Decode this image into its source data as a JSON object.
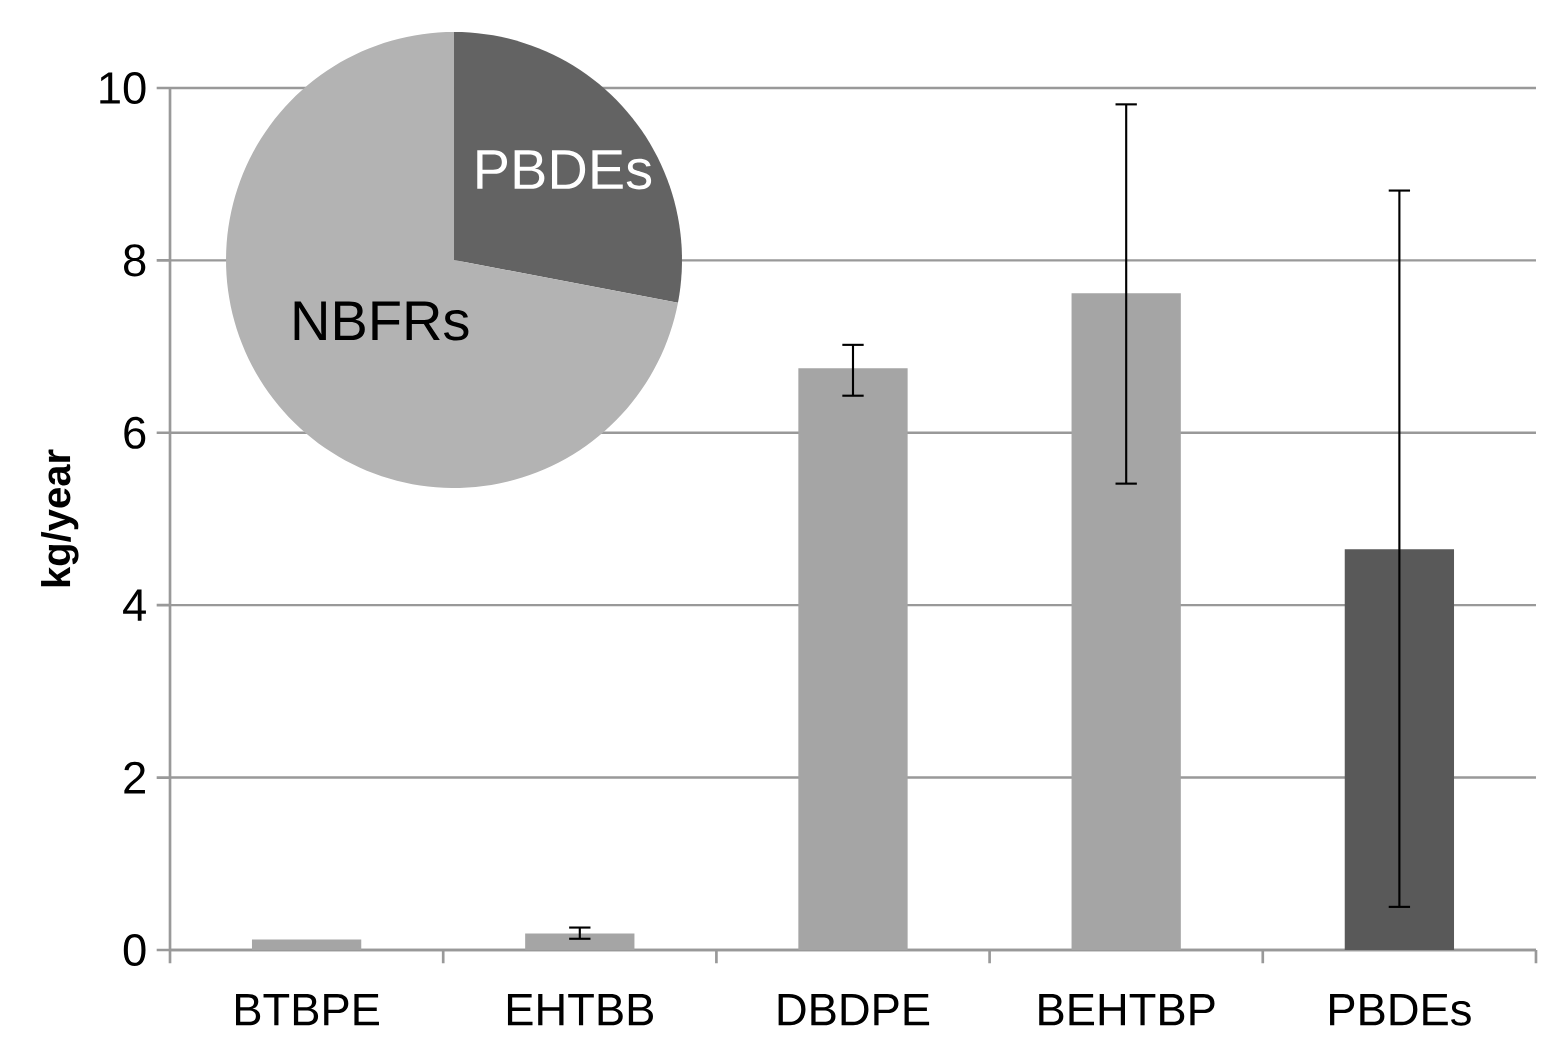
{
  "chart_data": [
    {
      "type": "bar",
      "ylabel": "kg/year",
      "categories": [
        "BTBPE",
        "EHTBB",
        "DBDPE",
        "BEHTBP",
        "PBDEs"
      ],
      "values": [
        0.12,
        0.19,
        6.75,
        7.62,
        4.65
      ],
      "colors": [
        "#a5a5a5",
        "#a5a5a5",
        "#a5a5a5",
        "#a5a5a5",
        "#595959"
      ],
      "errors": [
        null,
        [
          0.13,
          0.26
        ],
        [
          6.43,
          7.02
        ],
        [
          5.41,
          9.81
        ],
        [
          0.5,
          8.81
        ]
      ],
      "ylim": [
        0,
        10
      ],
      "yticks": [
        0,
        2,
        4,
        6,
        8,
        10
      ],
      "grid": "y"
    },
    {
      "type": "pie",
      "categories": [
        "PBDEs",
        "NBFRs"
      ],
      "values": [
        28,
        72
      ],
      "colors": [
        "#636363",
        "#b3b3b3"
      ]
    }
  ]
}
